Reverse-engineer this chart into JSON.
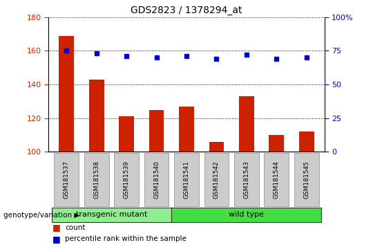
{
  "title": "GDS2823 / 1378294_at",
  "categories": [
    "GSM181537",
    "GSM181538",
    "GSM181539",
    "GSM181540",
    "GSM181541",
    "GSM181542",
    "GSM181543",
    "GSM181544",
    "GSM181545"
  ],
  "counts": [
    169,
    143,
    121,
    125,
    127,
    106,
    133,
    110,
    112
  ],
  "percentiles": [
    75,
    73,
    71,
    70,
    71,
    69,
    72,
    69,
    70
  ],
  "ylim_left": [
    100,
    180
  ],
  "ylim_right": [
    0,
    100
  ],
  "yticks_left": [
    100,
    120,
    140,
    160,
    180
  ],
  "yticks_right": [
    0,
    25,
    50,
    75,
    100
  ],
  "bar_color": "#cc2200",
  "dot_color": "#0000cc",
  "bar_width": 0.5,
  "groups": [
    {
      "label": "transgenic mutant",
      "start": 0,
      "end": 3,
      "color": "#90ee90"
    },
    {
      "label": "wild type",
      "start": 4,
      "end": 8,
      "color": "#44dd44"
    }
  ],
  "group_label": "genotype/variation",
  "legend_count_label": "count",
  "legend_percentile_label": "percentile rank within the sample",
  "title_fontsize": 10,
  "axis_color_left": "#cc2200",
  "axis_color_right": "#0000cc",
  "tick_bg_color": "#cccccc",
  "plot_bg_color": "#ffffff"
}
